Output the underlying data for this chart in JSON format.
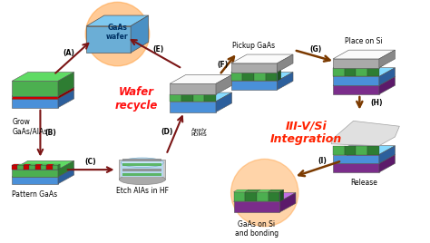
{
  "bg_color": "#ffffff",
  "wafer_recycle_text": "Wafer\nrecycle",
  "iii_v_si_text": "III-V/Si\nIntegration",
  "labels": {
    "grow": "Grow\nGaAs/AlAs",
    "pattern": "Pattern GaAs",
    "etch": "Etch AlAs in HF",
    "apply_pdms": "Apply\nPDMS",
    "pickup": "Pickup GaAs",
    "place_si": "Place on Si",
    "release": "Release",
    "gaas_si": "GaAs on Si\nand bonding",
    "gaas_wafer": "GaAs\nwafer"
  },
  "arrow_color": "#7B1515",
  "brown_arrow_color": "#7B3A00",
  "red_text_color": "#FF1111",
  "orange_text_color": "#FF2200",
  "green_bright": "#4CAF50",
  "green_dark": "#2E7D32",
  "green_side": "#1B5E20",
  "blue_top": "#6BAED6",
  "blue_front": "#4A90D9",
  "blue_side": "#2C5F9C",
  "gray_top": "#C8C8C8",
  "gray_front": "#AAAAAA",
  "gray_side": "#888888",
  "purple_top": "#9B59B6",
  "purple_front": "#7B2D8B",
  "purple_side": "#5C1A6A",
  "orange_glow": "#FFA040"
}
